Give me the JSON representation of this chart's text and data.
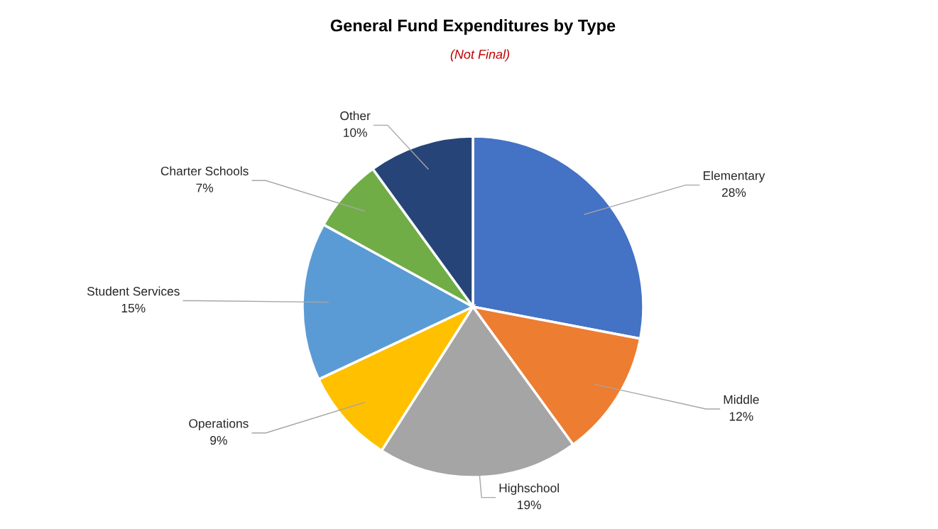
{
  "chart_data": {
    "type": "pie",
    "title": "General Fund Expenditures by Type",
    "subtitle": "(Not Final)",
    "categories": [
      "Elementary",
      "Middle",
      "Highschool",
      "Operations",
      "Student Services",
      "Charter Schools",
      "Other"
    ],
    "values": [
      28,
      12,
      19,
      9,
      15,
      7,
      10
    ],
    "value_labels": [
      "28%",
      "12%",
      "19%",
      "9%",
      "15%",
      "7%",
      "10%"
    ],
    "colors": [
      "#4472c4",
      "#ed7d31",
      "#a5a5a5",
      "#ffc000",
      "#5b9bd5",
      "#70ad47",
      "#264478"
    ],
    "legend": false
  }
}
